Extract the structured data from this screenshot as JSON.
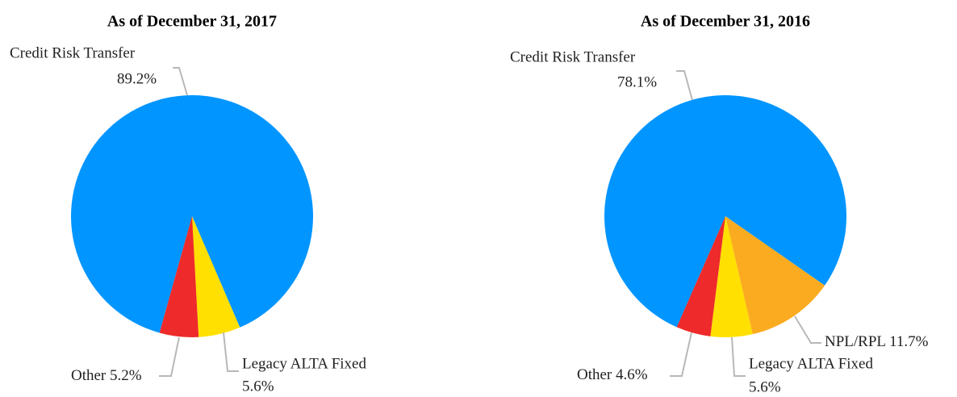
{
  "chart_data": [
    {
      "type": "pie",
      "title": "As of December 31, 2017",
      "categories": [
        "Credit Risk Transfer",
        "Legacy ALTA Fixed",
        "Other"
      ],
      "values": [
        89.2,
        5.6,
        5.2
      ],
      "value_labels": [
        "89.2%",
        "5.6%",
        "5.2%"
      ],
      "colors": [
        "#0095ff",
        "#ffe000",
        "#ee2a2a"
      ]
    },
    {
      "type": "pie",
      "title": "As of December 31, 2016",
      "categories": [
        "Credit Risk Transfer",
        "NPL/RPL",
        "Legacy ALTA Fixed",
        "Other"
      ],
      "values": [
        78.1,
        11.7,
        5.6,
        4.6
      ],
      "value_labels": [
        "78.1%",
        "11.7%",
        "5.6%",
        "4.6%"
      ],
      "colors": [
        "#0095ff",
        "#fbab1f",
        "#ffe000",
        "#ee2a2a"
      ]
    }
  ]
}
